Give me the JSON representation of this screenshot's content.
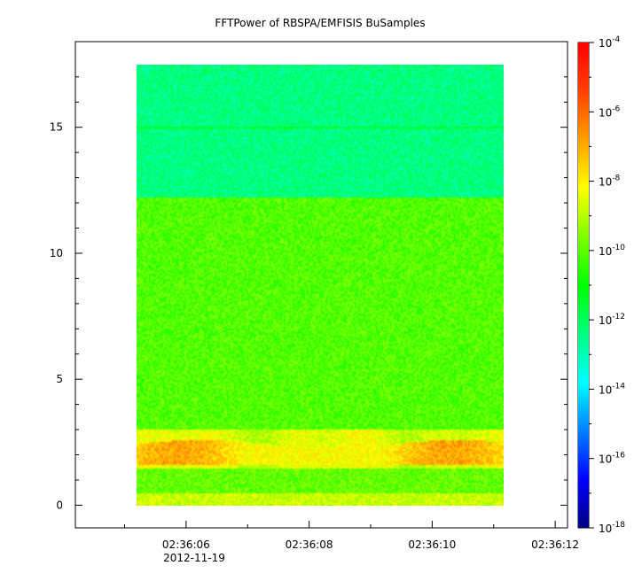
{
  "chart_data": {
    "type": "heatmap",
    "title": "FFTPower of RBSPA/EMFISIS  BuSamples",
    "xlabel": "",
    "ylabel": "",
    "x_axis": {
      "ticks": [
        "02:36:06",
        "02:36:08",
        "02:36:10",
        "02:36:12"
      ],
      "tick_values_s": [
        6,
        8,
        10,
        12
      ],
      "range_s": [
        4.2,
        12.2
      ],
      "date_label": "2012-11-19"
    },
    "y_axis": {
      "ticks": [
        "0",
        "5",
        "10",
        "15"
      ],
      "tick_values": [
        0,
        5,
        10,
        15
      ],
      "range": [
        -0.9,
        18.4
      ]
    },
    "data_extent": {
      "x_start": "02:36:05.2",
      "x_end": "02:36:11.1",
      "y_start": 0,
      "y_end": 17.5
    },
    "colorbar": {
      "scale": "log",
      "range": [
        1e-18,
        0.0001
      ],
      "tick_base": "10",
      "tick_exponents": [
        "-4",
        "-6",
        "-8",
        "-10",
        "-12",
        "-14",
        "-16",
        "-18"
      ],
      "tick_values": [
        -4,
        -6,
        -8,
        -10,
        -12,
        -14,
        -16,
        -18
      ],
      "colormap": [
        "#000080",
        "#0000ff",
        "#0080ff",
        "#00ffff",
        "#00ff80",
        "#00ff00",
        "#80ff00",
        "#ffff00",
        "#ffa000",
        "#ff4000",
        "#ff0000"
      ]
    },
    "features": [
      {
        "y_range": [
          12.2,
          17.5
        ],
        "log_power": -12.4,
        "description_color": "#1dfa80"
      },
      {
        "y_range": [
          14.95,
          15.05
        ],
        "log_power": -11.5,
        "description_color": "#3fe83a"
      },
      {
        "y_range": [
          3.0,
          12.2
        ],
        "log_power": -10.1,
        "description_color": "#4fe023"
      },
      {
        "y_range": [
          1.5,
          3.0
        ],
        "log_power": -8.5,
        "description_color": "#e8e610"
      },
      {
        "y_range": [
          1.7,
          2.4
        ],
        "log_power": -7.2,
        "description_color": "#f5a020"
      },
      {
        "y_range": [
          0.0,
          0.5
        ],
        "log_power": -8.8,
        "description_color": "#d4ec1c"
      }
    ]
  }
}
